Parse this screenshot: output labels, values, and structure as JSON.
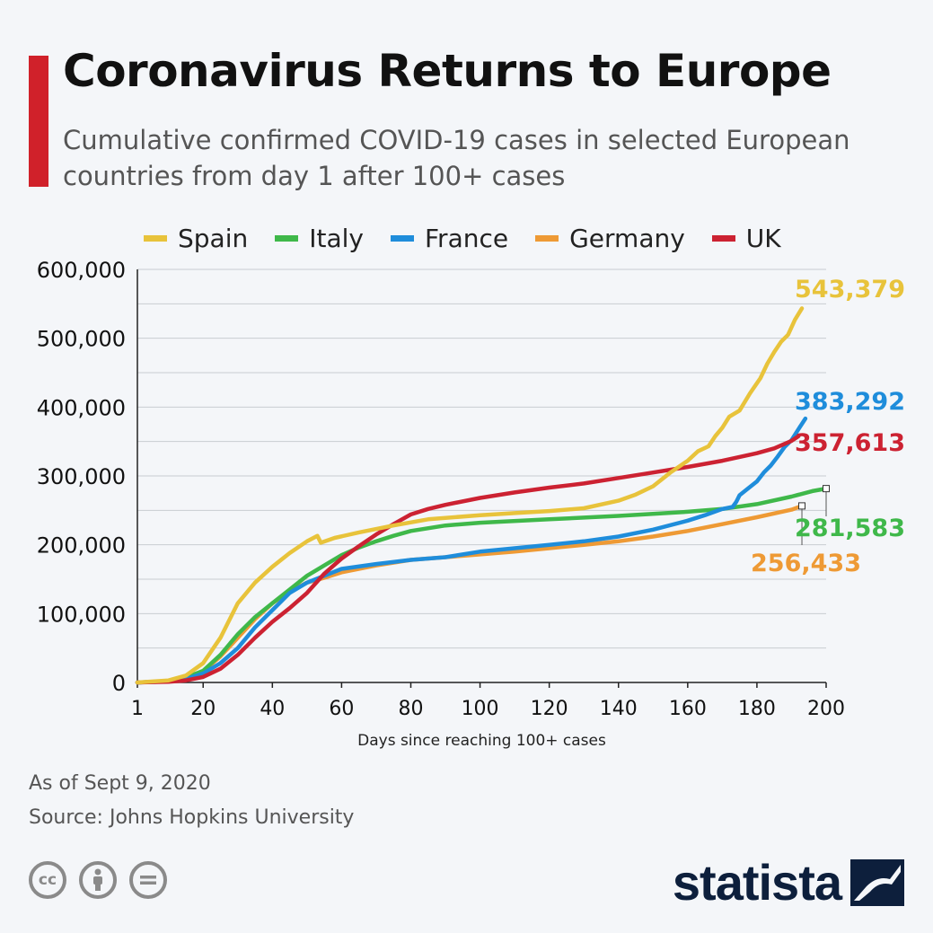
{
  "header": {
    "title": "Coronavirus Returns to Europe",
    "subtitle": "Cumulative confirmed COVID-19 cases in selected European countries from day 1 after 100+ cases"
  },
  "colors": {
    "accent": "#d0212a",
    "spain": "#e8c33b",
    "italy": "#3fb84a",
    "france": "#1f8ddb",
    "germany": "#ee9a35",
    "uk": "#cc2232",
    "grid": "#c9ccd1",
    "axis_text": "#111111"
  },
  "footer": {
    "date": "As of Sept 9, 2020",
    "source": "Source: Johns Hopkins University",
    "license_icons": [
      "creative-commons-icon",
      "attribution-person-icon",
      "no-derivatives-icon"
    ],
    "brand": "statista",
    "brand_icon": "statista-logo-icon"
  },
  "chart_data": {
    "type": "line",
    "title": "",
    "xlabel": "Days since reaching 100+ cases",
    "ylabel": "",
    "xlim": [
      1,
      200
    ],
    "ylim": [
      0,
      600000
    ],
    "x_ticks": [
      1,
      20,
      40,
      60,
      80,
      100,
      120,
      140,
      160,
      180,
      200
    ],
    "y_ticks": [
      0,
      100000,
      200000,
      300000,
      400000,
      500000,
      600000
    ],
    "y_tick_labels": [
      "0",
      "100,000",
      "200,000",
      "300,000",
      "400,000",
      "500,000",
      "600,000"
    ],
    "grid": true,
    "legend_placement": "top",
    "series": [
      {
        "name": "Spain",
        "color_key": "spain",
        "end_label": "543,379",
        "points": [
          [
            1,
            0
          ],
          [
            10,
            3000
          ],
          [
            15,
            10000
          ],
          [
            20,
            28000
          ],
          [
            25,
            65000
          ],
          [
            30,
            115000
          ],
          [
            35,
            145000
          ],
          [
            40,
            168000
          ],
          [
            45,
            188000
          ],
          [
            50,
            205000
          ],
          [
            53,
            213000
          ],
          [
            54,
            203000
          ],
          [
            58,
            210000
          ],
          [
            65,
            218000
          ],
          [
            75,
            228000
          ],
          [
            85,
            237000
          ],
          [
            100,
            243000
          ],
          [
            110,
            246000
          ],
          [
            120,
            249000
          ],
          [
            130,
            253000
          ],
          [
            140,
            264000
          ],
          [
            145,
            273000
          ],
          [
            150,
            285000
          ],
          [
            155,
            305000
          ],
          [
            160,
            322000
          ],
          [
            163,
            336000
          ],
          [
            166,
            343000
          ],
          [
            168,
            358000
          ],
          [
            170,
            370000
          ],
          [
            172,
            386000
          ],
          [
            175,
            395000
          ],
          [
            178,
            420000
          ],
          [
            181,
            442000
          ],
          [
            183,
            463000
          ],
          [
            185,
            480000
          ],
          [
            187,
            495000
          ],
          [
            189,
            505000
          ],
          [
            191,
            527000
          ],
          [
            193,
            543379
          ]
        ]
      },
      {
        "name": "Italy",
        "color_key": "italy",
        "end_label": "281,583",
        "points": [
          [
            1,
            0
          ],
          [
            10,
            2000
          ],
          [
            15,
            7000
          ],
          [
            20,
            17000
          ],
          [
            25,
            40000
          ],
          [
            30,
            70000
          ],
          [
            35,
            95000
          ],
          [
            40,
            115000
          ],
          [
            45,
            135000
          ],
          [
            50,
            155000
          ],
          [
            55,
            170000
          ],
          [
            60,
            185000
          ],
          [
            65,
            196000
          ],
          [
            70,
            205000
          ],
          [
            75,
            213000
          ],
          [
            80,
            220000
          ],
          [
            90,
            228000
          ],
          [
            100,
            232000
          ],
          [
            120,
            237000
          ],
          [
            140,
            242000
          ],
          [
            160,
            248000
          ],
          [
            170,
            252000
          ],
          [
            180,
            259000
          ],
          [
            190,
            270000
          ],
          [
            196,
            278000
          ],
          [
            200,
            281583
          ]
        ]
      },
      {
        "name": "France",
        "color_key": "france",
        "end_label": "383,292",
        "points": [
          [
            1,
            0
          ],
          [
            10,
            1500
          ],
          [
            15,
            5000
          ],
          [
            20,
            13000
          ],
          [
            25,
            28000
          ],
          [
            30,
            50000
          ],
          [
            35,
            80000
          ],
          [
            40,
            105000
          ],
          [
            45,
            130000
          ],
          [
            50,
            145000
          ],
          [
            55,
            155000
          ],
          [
            60,
            165000
          ],
          [
            70,
            172000
          ],
          [
            80,
            178000
          ],
          [
            90,
            182000
          ],
          [
            100,
            190000
          ],
          [
            110,
            195000
          ],
          [
            120,
            200000
          ],
          [
            130,
            205000
          ],
          [
            140,
            212000
          ],
          [
            150,
            222000
          ],
          [
            160,
            235000
          ],
          [
            165,
            243000
          ],
          [
            170,
            252000
          ],
          [
            173,
            255000
          ],
          [
            174,
            262000
          ],
          [
            175,
            272000
          ],
          [
            177,
            280000
          ],
          [
            180,
            292000
          ],
          [
            182,
            305000
          ],
          [
            184,
            315000
          ],
          [
            186,
            328000
          ],
          [
            188,
            342000
          ],
          [
            190,
            352000
          ],
          [
            192,
            368000
          ],
          [
            194,
            383292
          ]
        ]
      },
      {
        "name": "Germany",
        "color_key": "germany",
        "end_label": "256,433",
        "points": [
          [
            1,
            0
          ],
          [
            10,
            2000
          ],
          [
            15,
            6000
          ],
          [
            20,
            16000
          ],
          [
            25,
            38000
          ],
          [
            30,
            65000
          ],
          [
            35,
            92000
          ],
          [
            40,
            115000
          ],
          [
            45,
            132000
          ],
          [
            50,
            145000
          ],
          [
            55,
            152000
          ],
          [
            60,
            160000
          ],
          [
            70,
            170000
          ],
          [
            80,
            178000
          ],
          [
            90,
            182000
          ],
          [
            100,
            186000
          ],
          [
            110,
            190000
          ],
          [
            120,
            195000
          ],
          [
            130,
            200000
          ],
          [
            140,
            205000
          ],
          [
            150,
            212000
          ],
          [
            160,
            220000
          ],
          [
            170,
            230000
          ],
          [
            180,
            240000
          ],
          [
            190,
            251000
          ],
          [
            193,
            256433
          ]
        ]
      },
      {
        "name": "UK",
        "color_key": "uk",
        "end_label": "357,613",
        "points": [
          [
            1,
            0
          ],
          [
            10,
            1000
          ],
          [
            15,
            3000
          ],
          [
            20,
            8000
          ],
          [
            25,
            20000
          ],
          [
            30,
            40000
          ],
          [
            35,
            65000
          ],
          [
            40,
            88000
          ],
          [
            45,
            108000
          ],
          [
            50,
            130000
          ],
          [
            55,
            158000
          ],
          [
            60,
            180000
          ],
          [
            65,
            198000
          ],
          [
            70,
            215000
          ],
          [
            75,
            230000
          ],
          [
            80,
            244000
          ],
          [
            85,
            252000
          ],
          [
            90,
            258000
          ],
          [
            100,
            268000
          ],
          [
            110,
            276000
          ],
          [
            120,
            283000
          ],
          [
            130,
            289000
          ],
          [
            140,
            297000
          ],
          [
            150,
            305000
          ],
          [
            160,
            313000
          ],
          [
            170,
            322000
          ],
          [
            180,
            333000
          ],
          [
            185,
            340000
          ],
          [
            190,
            351000
          ],
          [
            192,
            357613
          ]
        ]
      }
    ]
  }
}
